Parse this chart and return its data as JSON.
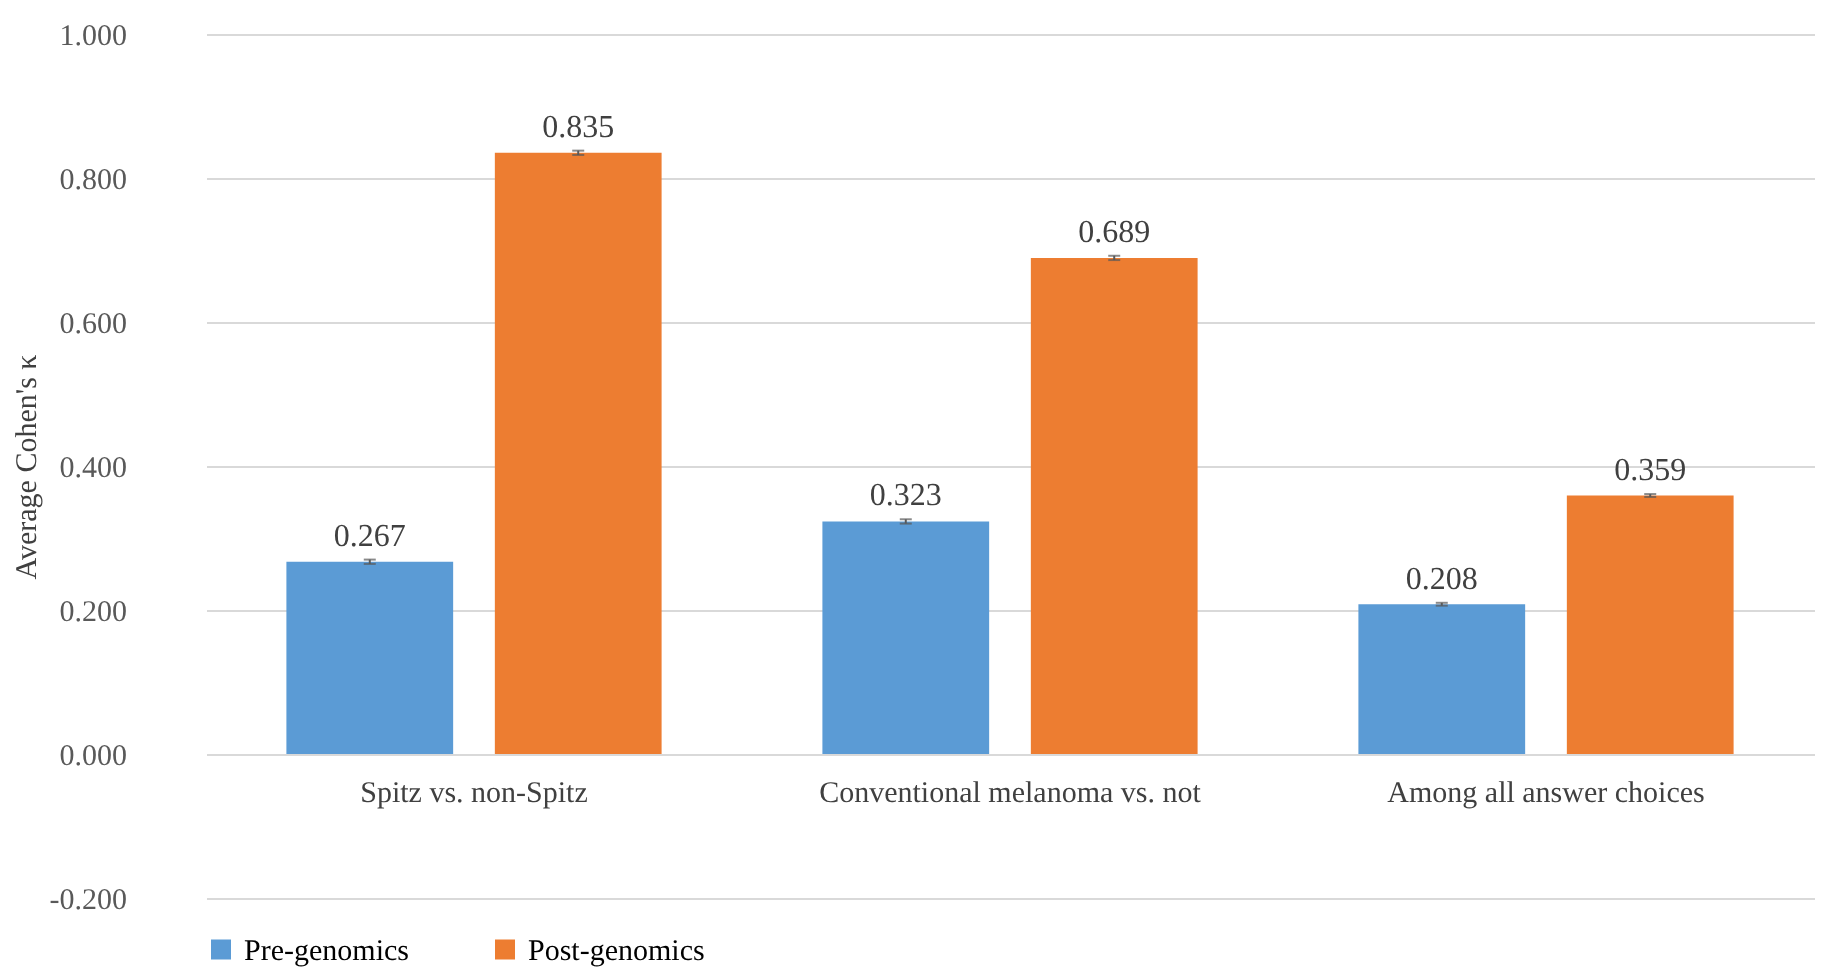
{
  "chart_data": {
    "type": "bar",
    "ylabel": "Average  Cohen's κ",
    "categories": [
      "Spitz vs. non-Spitz",
      "Conventional melanoma vs. not",
      "Among all answer choices"
    ],
    "series": [
      {
        "name": "Pre-genomics",
        "color": "#5b9bd5",
        "values": [
          0.267,
          0.323,
          0.208
        ],
        "errors": [
          0.003,
          0.003,
          0.002
        ]
      },
      {
        "name": "Post-genomics",
        "color": "#ed7d31",
        "values": [
          0.835,
          0.689,
          0.359
        ],
        "errors": [
          0.003,
          0.003,
          0.002
        ]
      }
    ],
    "ylim": [
      -0.2,
      1.0
    ],
    "yticks": [
      {
        "value": -0.2,
        "label": "-0.200"
      },
      {
        "value": 0,
        "label": "0.000"
      },
      {
        "value": 0.2,
        "label": "0.200"
      },
      {
        "value": 0.4,
        "label": "0.400"
      },
      {
        "value": 0.6,
        "label": "0.600"
      },
      {
        "value": 0.8,
        "label": "0.800"
      },
      {
        "value": 1.0,
        "label": "1.000"
      }
    ],
    "grid": "y",
    "legend": "bottom",
    "data_labels": true
  }
}
